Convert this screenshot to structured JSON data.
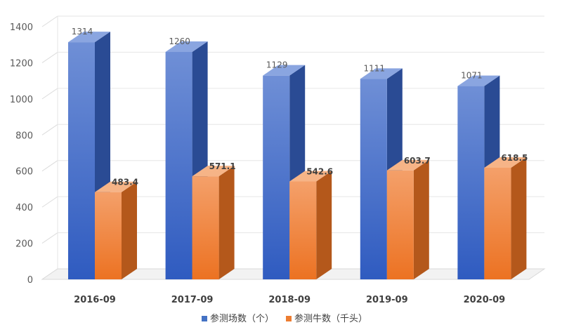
{
  "chart_data": {
    "type": "bar",
    "categories": [
      "2016-09",
      "2017-09",
      "2018-09",
      "2019-09",
      "2020-09"
    ],
    "series": [
      {
        "name": "参测场数（个）",
        "values": [
          1314,
          1260,
          1129,
          1111,
          1071
        ],
        "color": "#4472c4"
      },
      {
        "name": "参测牛数（千头）",
        "values": [
          483.4,
          571.1,
          542.6,
          603.7,
          618.5
        ],
        "color": "#ed7d31"
      }
    ],
    "yticks": [
      0,
      200,
      400,
      600,
      800,
      1000,
      1200,
      1400
    ],
    "ylim": [
      0,
      1400
    ],
    "grid": true,
    "legend_position": "bottom",
    "title": "",
    "xlabel": "",
    "ylabel": ""
  }
}
